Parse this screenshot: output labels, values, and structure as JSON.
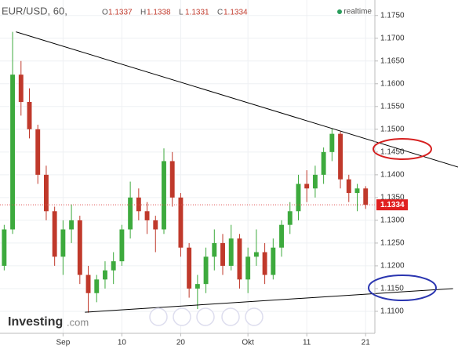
{
  "chart_data": {
    "type": "candlestick",
    "title": "EUR/USD, 60,",
    "legend": {
      "ohlc": [
        {
          "label": "O",
          "value": 1.1337
        },
        {
          "label": "H",
          "value": 1.1338
        },
        {
          "label": "L",
          "value": 1.1331
        },
        {
          "label": "C",
          "value": 1.1334
        }
      ],
      "status": "realtime"
    },
    "brand": {
      "name": "Investing",
      "suffix": ".com"
    },
    "up_color": "#3daa3d",
    "down_color": "#c0392b",
    "x": [
      -7,
      -6,
      -5,
      -4,
      -3,
      -2,
      -1,
      0,
      1,
      2,
      3,
      4,
      5,
      6,
      7,
      8,
      9,
      10,
      11,
      12,
      13,
      14,
      15,
      16,
      17,
      18,
      19,
      20,
      21,
      22,
      23,
      24,
      25,
      26,
      27,
      28,
      29,
      30,
      31,
      32,
      33,
      34,
      35,
      36
    ],
    "open": [
      1.12,
      1.128,
      1.162,
      1.156,
      1.15,
      1.14,
      1.132,
      1.122,
      1.128,
      1.13,
      1.118,
      1.114,
      1.117,
      1.119,
      1.121,
      1.128,
      1.135,
      1.132,
      1.13,
      1.128,
      1.143,
      1.135,
      1.124,
      1.115,
      1.116,
      1.122,
      1.125,
      1.12,
      1.126,
      1.117,
      1.122,
      1.123,
      1.118,
      1.124,
      1.129,
      1.132,
      1.138,
      1.137,
      1.14,
      1.145,
      1.149,
      1.139,
      1.136,
      1.137
    ],
    "high": [
      1.129,
      1.1714,
      1.165,
      1.159,
      1.151,
      1.142,
      1.133,
      1.13,
      1.1335,
      1.131,
      1.12,
      1.118,
      1.121,
      1.123,
      1.129,
      1.1385,
      1.137,
      1.134,
      1.131,
      1.1458,
      1.145,
      1.136,
      1.125,
      1.118,
      1.124,
      1.128,
      1.127,
      1.129,
      1.127,
      1.124,
      1.128,
      1.125,
      1.126,
      1.13,
      1.134,
      1.14,
      1.141,
      1.142,
      1.146,
      1.1502,
      1.1495,
      1.14,
      1.138,
      1.1375
    ],
    "low": [
      1.119,
      1.127,
      1.153,
      1.148,
      1.138,
      1.13,
      1.12,
      1.118,
      1.125,
      1.116,
      1.1097,
      1.112,
      1.115,
      1.116,
      1.12,
      1.126,
      1.13,
      1.127,
      1.123,
      1.127,
      1.133,
      1.122,
      1.113,
      1.1105,
      1.114,
      1.119,
      1.118,
      1.119,
      1.115,
      1.114,
      1.12,
      1.116,
      1.117,
      1.122,
      1.127,
      1.13,
      1.134,
      1.135,
      1.138,
      1.143,
      1.137,
      1.134,
      1.132,
      1.1325
    ],
    "close": [
      1.128,
      1.162,
      1.156,
      1.15,
      1.14,
      1.132,
      1.122,
      1.128,
      1.13,
      1.118,
      1.114,
      1.117,
      1.119,
      1.121,
      1.128,
      1.135,
      1.132,
      1.13,
      1.128,
      1.143,
      1.135,
      1.124,
      1.115,
      1.116,
      1.122,
      1.125,
      1.12,
      1.126,
      1.117,
      1.122,
      1.123,
      1.118,
      1.124,
      1.129,
      1.132,
      1.138,
      1.137,
      1.14,
      1.145,
      1.149,
      1.139,
      1.136,
      1.137,
      1.1334
    ],
    "trendlines": [
      {
        "x": [
          -5.6,
          47
        ],
        "y": [
          1.1714,
          1.1417
        ]
      },
      {
        "x": [
          2.6,
          46.4
        ],
        "y": [
          1.1098,
          1.115
        ]
      }
    ],
    "xlim": [
      -7.5,
      37.1
    ],
    "ylim": [
      1.10517,
      1.1784
    ],
    "xticks": [
      {
        "value": 0,
        "label": "Sep"
      },
      {
        "value": 7,
        "label": "10"
      },
      {
        "value": 14,
        "label": "20"
      },
      {
        "value": 22,
        "label": "Okt"
      },
      {
        "value": 29,
        "label": "11"
      },
      {
        "value": 36,
        "label": "21"
      }
    ],
    "yticks": [
      {
        "value": 1.11,
        "label": "1.1100"
      },
      {
        "value": 1.115,
        "label": "1.1150"
      },
      {
        "value": 1.12,
        "label": "1.1200"
      },
      {
        "value": 1.125,
        "label": "1.1250"
      },
      {
        "value": 1.13,
        "label": "1.1300"
      },
      {
        "value": 1.135,
        "label": "1.1350"
      },
      {
        "value": 1.14,
        "label": "1.1400"
      },
      {
        "value": 1.145,
        "label": "1.1450"
      },
      {
        "value": 1.15,
        "label": "1.1500"
      },
      {
        "value": 1.155,
        "label": "1.1550"
      },
      {
        "value": 1.16,
        "label": "1.1600"
      },
      {
        "value": 1.165,
        "label": "1.1650"
      },
      {
        "value": 1.17,
        "label": "1.1700"
      },
      {
        "value": 1.175,
        "label": "1.1750"
      }
    ],
    "grid": true
  }
}
